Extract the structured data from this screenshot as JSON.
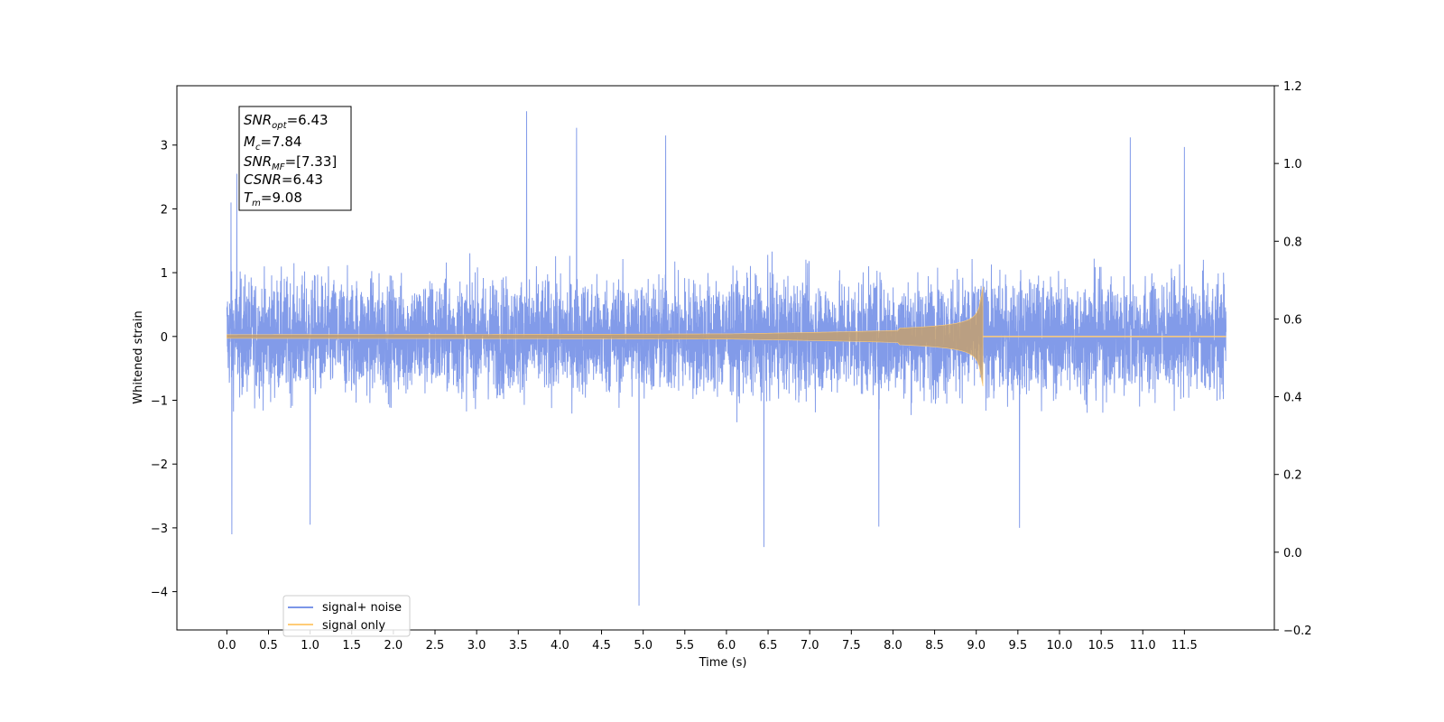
{
  "chart_data": {
    "type": "line",
    "title": "",
    "xlabel": "Time (s)",
    "ylabel": "Whitened strain",
    "xlim": [
      -0.6,
      12.58
    ],
    "ylim": [
      -4.6,
      3.93
    ],
    "y2lim": [
      -0.2,
      1.2
    ],
    "x_ticks": [
      "0.0",
      "0.5",
      "1.0",
      "1.5",
      "2.0",
      "2.5",
      "3.0",
      "3.5",
      "4.0",
      "4.5",
      "5.0",
      "5.5",
      "6.0",
      "6.5",
      "7.0",
      "7.5",
      "8.0",
      "8.5",
      "9.0",
      "9.5",
      "10.0",
      "10.5",
      "11.0",
      "11.5"
    ],
    "y_ticks": [
      "3",
      "2",
      "1",
      "0",
      "−1",
      "−2",
      "−3",
      "−4"
    ],
    "y2_ticks": [
      "1.2",
      "1.0",
      "0.8",
      "0.6",
      "0.4",
      "0.2",
      "0.0",
      "−0.2"
    ],
    "grid": false,
    "legend_position": "lower-left",
    "series": [
      {
        "name": "signal+ noise",
        "color": "#7b96e8",
        "x_range": [
          0.0,
          12.0
        ],
        "envelope_max": 2.1,
        "envelope_min": -1.8,
        "peaks": [
          {
            "x": 0.05,
            "y": 2.1
          },
          {
            "x": 0.12,
            "y": 2.55
          },
          {
            "x": 0.06,
            "y": -3.1
          },
          {
            "x": 1.0,
            "y": -2.95
          },
          {
            "x": 3.6,
            "y": 3.53
          },
          {
            "x": 4.2,
            "y": 3.27
          },
          {
            "x": 4.95,
            "y": -4.22
          },
          {
            "x": 5.27,
            "y": 3.15
          },
          {
            "x": 6.45,
            "y": -3.3
          },
          {
            "x": 10.85,
            "y": 3.12
          },
          {
            "x": 11.5,
            "y": 2.97
          },
          {
            "x": 9.52,
            "y": -3.0
          },
          {
            "x": 7.83,
            "y": -2.98
          }
        ]
      },
      {
        "name": "signal only",
        "color": "#ffcc77",
        "merger_time": 9.08,
        "max_amplitude": 0.78,
        "end_x": 12.0
      }
    ],
    "annotation": {
      "lines": [
        {
          "var": "SNR",
          "sub": "opt",
          "value": "=6.43"
        },
        {
          "var": "M",
          "sub": "c",
          "value": "=7.84"
        },
        {
          "var": "SNR",
          "sub": "MF",
          "value": "=[7.33]"
        },
        {
          "var": "CSNR",
          "sub": "",
          "value": "=6.43"
        },
        {
          "var": "T",
          "sub": "m",
          "value": "=9.08"
        }
      ]
    }
  }
}
